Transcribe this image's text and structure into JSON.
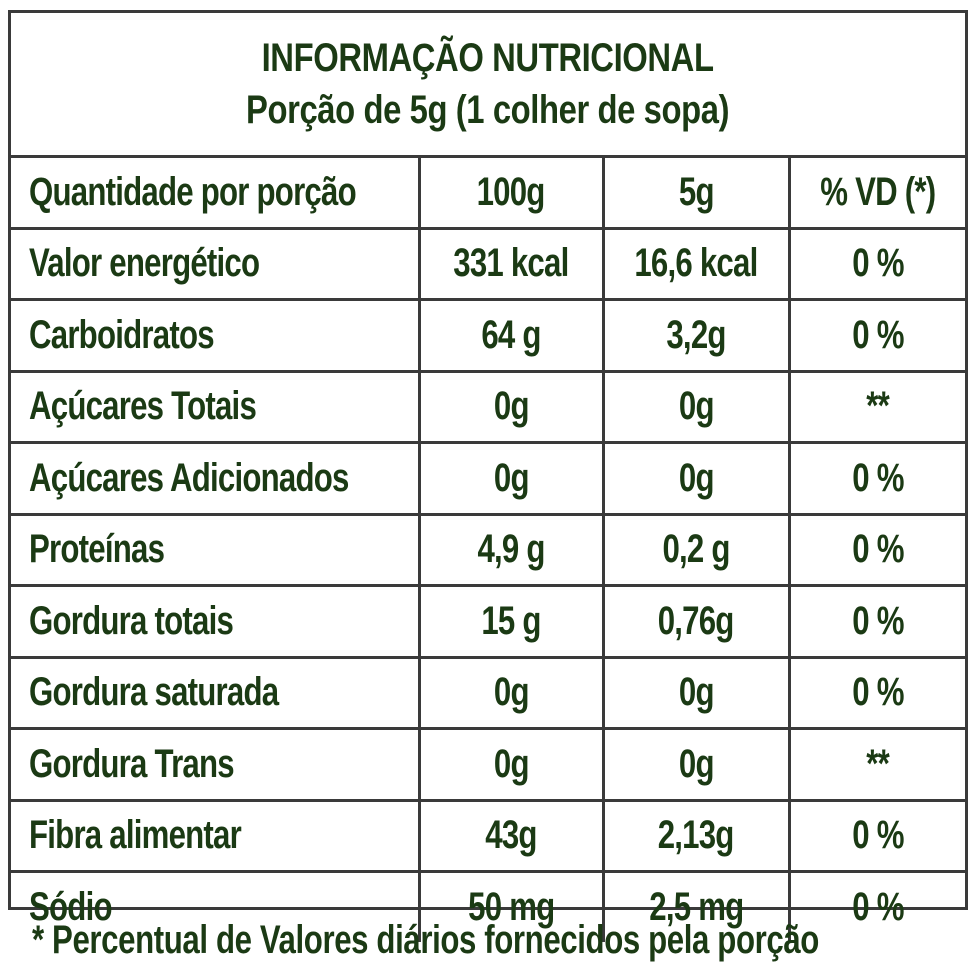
{
  "header": {
    "title": "INFORMAÇÃO NUTRICIONAL",
    "serving": "Porção de 5g (1 colher de sopa)"
  },
  "columns": [
    "Quantidade por porção",
    "100g",
    "5g",
    "% VD (*)"
  ],
  "rows": [
    {
      "name": "Valor energético",
      "per100": "331 kcal",
      "perServing": "16,6 kcal",
      "vd": "0 %"
    },
    {
      "name": "Carboidratos",
      "per100": "64 g",
      "perServing": "3,2g",
      "vd": "0 %"
    },
    {
      "name": "Açúcares Totais",
      "per100": "0g",
      "perServing": "0g",
      "vd": "**"
    },
    {
      "name": "Açúcares Adicionados",
      "per100": "0g",
      "perServing": "0g",
      "vd": "0 %"
    },
    {
      "name": "Proteínas",
      "per100": "4,9 g",
      "perServing": "0,2 g",
      "vd": "0 %"
    },
    {
      "name": "Gordura totais",
      "per100": "15 g",
      "perServing": "0,76g",
      "vd": "0 %"
    },
    {
      "name": "Gordura saturada",
      "per100": "0g",
      "perServing": "0g",
      "vd": "0 %"
    },
    {
      "name": "Gordura Trans",
      "per100": "0g",
      "perServing": "0g",
      "vd": "**"
    },
    {
      "name": "Fibra alimentar",
      "per100": "43g",
      "perServing": "2,13g",
      "vd": "0 %"
    },
    {
      "name": "Sódio",
      "per100": "50 mg",
      "perServing": "2,5 mg",
      "vd": "0 %"
    }
  ],
  "footnote": "* Percentual de Valores diários fornecidos pela porção",
  "colors": {
    "text": "#1b3a14",
    "border": "#3a3a3a",
    "background": "#ffffff"
  }
}
